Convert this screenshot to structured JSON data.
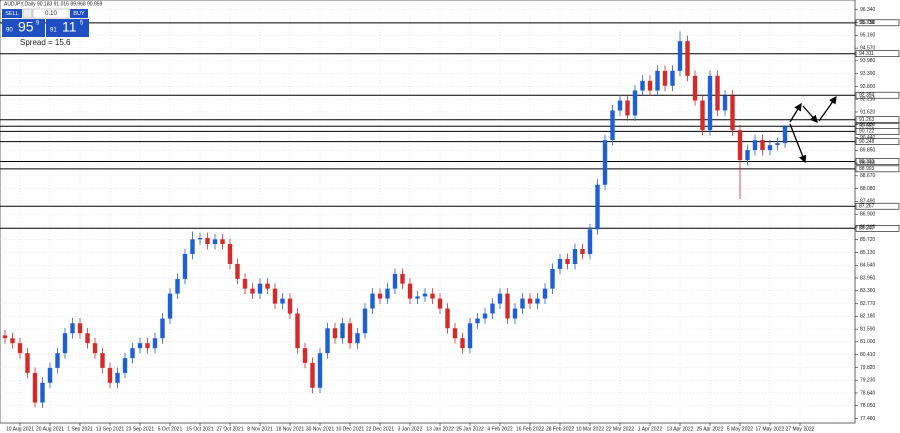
{
  "chart_data": {
    "type": "candlestick",
    "title": "AUDJPY,Daily  90.183 91.016 89.968 90.959",
    "up_color": "#1f5fd6",
    "down_color": "#d42a2a",
    "grid": true,
    "ylim": [
      77.3,
      96.7
    ],
    "yticks": [
      {
        "value": 77.46,
        "label": "77.460"
      },
      {
        "value": 78.05,
        "label": "78.050"
      },
      {
        "value": 78.64,
        "label": "78.640"
      },
      {
        "value": 79.23,
        "label": "79.230"
      },
      {
        "value": 79.82,
        "label": "79.820"
      },
      {
        "value": 80.41,
        "label": "80.410"
      },
      {
        "value": 81,
        "label": "81.000"
      },
      {
        "value": 81.59,
        "label": "81.590"
      },
      {
        "value": 82.18,
        "label": "82.180"
      },
      {
        "value": 82.77,
        "label": "82.770"
      },
      {
        "value": 83.36,
        "label": "83.360"
      },
      {
        "value": 83.95,
        "label": "83.950"
      },
      {
        "value": 84.54,
        "label": "84.540"
      },
      {
        "value": 85.13,
        "label": "85.130"
      },
      {
        "value": 85.72,
        "label": "85.720"
      },
      {
        "value": 86.31,
        "label": "86.310"
      },
      {
        "value": 86.9,
        "label": "86.900"
      },
      {
        "value": 87.49,
        "label": "87.490"
      },
      {
        "value": 88.08,
        "label": "88.080"
      },
      {
        "value": 88.67,
        "label": "88.670"
      },
      {
        "value": 89.26,
        "label": "89.260"
      },
      {
        "value": 89.85,
        "label": "89.850"
      },
      {
        "value": 90.44,
        "label": "90.440"
      },
      {
        "value": 91.03,
        "label": "91.030"
      },
      {
        "value": 91.62,
        "label": "91.620"
      },
      {
        "value": 92.21,
        "label": "92.210"
      },
      {
        "value": 92.8,
        "label": "92.800"
      },
      {
        "value": 93.39,
        "label": "93.390"
      },
      {
        "value": 93.98,
        "label": "93.980"
      },
      {
        "value": 94.57,
        "label": "94.570"
      },
      {
        "value": 95.16,
        "label": "95.160"
      },
      {
        "value": 95.75,
        "label": "95.750"
      },
      {
        "value": 96.34,
        "label": "96.340"
      }
    ],
    "levels": [
      95.738,
      94.311,
      92.394,
      91.263,
      90.961,
      90.722,
      90.248,
      89.333,
      88.993,
      87.267,
      86.247
    ],
    "categories": [
      null,
      null,
      "10 Aug 2021",
      null,
      null,
      null,
      "20 Aug 2021",
      null,
      null,
      null,
      "1 Sep 2021",
      null,
      null,
      null,
      "13 Sep 2021",
      null,
      null,
      null,
      "23 Sep 2021",
      null,
      null,
      null,
      "5 Oct 2021",
      null,
      null,
      null,
      "15 Oct 2021",
      null,
      null,
      null,
      "27 Oct 2021",
      null,
      null,
      null,
      "8 Nov 2021",
      null,
      null,
      null,
      "18 Nov 2021",
      null,
      null,
      null,
      "30 Nov 2021",
      null,
      null,
      null,
      "10 Dec 2021",
      null,
      null,
      null,
      "22 Dec 2021",
      null,
      null,
      null,
      "3 Jan 2022",
      null,
      null,
      null,
      "13 Jan 2022",
      null,
      null,
      null,
      "25 Jan 2022",
      null,
      null,
      null,
      "4 Feb 2022",
      null,
      null,
      null,
      "16 Feb 2022",
      null,
      null,
      null,
      "28 Feb 2022",
      null,
      null,
      null,
      "10 Mar 2022",
      null,
      null,
      null,
      "22 Mar 2022",
      null,
      null,
      null,
      "1 Apr 2022",
      null,
      null,
      null,
      "13 Apr 2022",
      null,
      null,
      null,
      "25 Apr 2022",
      null,
      null,
      null,
      "5 May 2022",
      null,
      null,
      null,
      "17 May 2022",
      null,
      null,
      null,
      "27 May 2022"
    ],
    "ohlc": [
      [
        81.3,
        81.55,
        80.92,
        81.17
      ],
      [
        81.17,
        81.42,
        80.69,
        80.94
      ],
      [
        80.94,
        81.19,
        80.23,
        80.48
      ],
      [
        80.48,
        80.73,
        79.32,
        79.57
      ],
      [
        79.57,
        79.82,
        77.97,
        78.2
      ],
      [
        78.2,
        79.36,
        77.95,
        79.11
      ],
      [
        79.11,
        80.05,
        78.86,
        79.8
      ],
      [
        79.8,
        80.73,
        79.55,
        80.48
      ],
      [
        80.48,
        81.65,
        80.23,
        81.4
      ],
      [
        81.4,
        82.11,
        81.15,
        81.86
      ],
      [
        81.86,
        82.11,
        81.15,
        81.4
      ],
      [
        81.4,
        81.65,
        80.69,
        80.94
      ],
      [
        80.94,
        81.19,
        80.23,
        80.48
      ],
      [
        80.48,
        80.73,
        79.55,
        79.8
      ],
      [
        79.8,
        80.05,
        78.86,
        79.11
      ],
      [
        79.11,
        79.82,
        78.86,
        79.57
      ],
      [
        79.57,
        80.5,
        79.32,
        80.25
      ],
      [
        80.25,
        80.96,
        80,
        80.71
      ],
      [
        80.71,
        81.19,
        80.46,
        80.94
      ],
      [
        80.94,
        81.19,
        80.46,
        80.71
      ],
      [
        80.71,
        81.42,
        80.46,
        81.17
      ],
      [
        81.17,
        82.33,
        80.92,
        82.08
      ],
      [
        82.08,
        83.48,
        81.83,
        83.23
      ],
      [
        83.23,
        84.16,
        82.98,
        83.91
      ],
      [
        83.91,
        85.31,
        83.66,
        85.06
      ],
      [
        85.06,
        86.1,
        84.81,
        85.74
      ],
      [
        85.74,
        86.05,
        85.49,
        85.8
      ],
      [
        85.8,
        86.05,
        85.27,
        85.52
      ],
      [
        85.52,
        85.99,
        85.27,
        85.74
      ],
      [
        85.74,
        85.99,
        85.27,
        85.52
      ],
      [
        85.52,
        85.77,
        84.35,
        84.6
      ],
      [
        84.6,
        84.85,
        83.66,
        83.91
      ],
      [
        83.91,
        84.16,
        83.21,
        83.46
      ],
      [
        83.46,
        83.71,
        82.98,
        83.23
      ],
      [
        83.23,
        83.94,
        82.98,
        83.69
      ],
      [
        83.69,
        83.94,
        83.21,
        83.46
      ],
      [
        83.46,
        83.71,
        82.52,
        82.77
      ],
      [
        82.77,
        83.25,
        82.52,
        83
      ],
      [
        83,
        83.25,
        82.06,
        82.31
      ],
      [
        82.31,
        82.56,
        80.46,
        80.71
      ],
      [
        80.71,
        80.96,
        79.78,
        80.03
      ],
      [
        80.03,
        80.28,
        78.63,
        78.88
      ],
      [
        78.88,
        80.73,
        78.63,
        80.48
      ],
      [
        80.48,
        81.88,
        80.23,
        81.63
      ],
      [
        81.63,
        81.88,
        80.92,
        81.17
      ],
      [
        81.17,
        82.11,
        80.92,
        81.86
      ],
      [
        81.86,
        82.11,
        80.69,
        80.94
      ],
      [
        80.94,
        81.65,
        80.69,
        81.4
      ],
      [
        81.4,
        82.79,
        81.15,
        82.54
      ],
      [
        82.54,
        83.48,
        82.29,
        83.23
      ],
      [
        83.23,
        83.48,
        82.75,
        83
      ],
      [
        83,
        83.71,
        82.75,
        83.46
      ],
      [
        83.46,
        84.39,
        83.21,
        84.14
      ],
      [
        84.14,
        84.39,
        83.44,
        83.69
      ],
      [
        83.69,
        83.94,
        82.75,
        83
      ],
      [
        83,
        83.35,
        82.75,
        83.1
      ],
      [
        83.1,
        83.48,
        82.85,
        83.23
      ],
      [
        83.23,
        83.48,
        82.75,
        83
      ],
      [
        83,
        83.25,
        82.29,
        82.54
      ],
      [
        82.54,
        82.79,
        81.38,
        81.63
      ],
      [
        81.63,
        81.88,
        80.92,
        81.17
      ],
      [
        81.17,
        81.42,
        80.46,
        80.71
      ],
      [
        80.71,
        82.11,
        80.46,
        81.86
      ],
      [
        81.86,
        82.33,
        81.61,
        82.08
      ],
      [
        82.08,
        82.56,
        81.83,
        82.31
      ],
      [
        82.31,
        83.02,
        82.06,
        82.77
      ],
      [
        82.77,
        83.48,
        82.52,
        83.23
      ],
      [
        83.23,
        83.48,
        81.83,
        82.08
      ],
      [
        82.08,
        82.79,
        81.83,
        82.54
      ],
      [
        82.54,
        83.25,
        82.29,
        83
      ],
      [
        83,
        83.25,
        82.52,
        82.77
      ],
      [
        82.77,
        83.25,
        82.52,
        83
      ],
      [
        83,
        83.71,
        82.75,
        83.46
      ],
      [
        83.46,
        84.62,
        83.21,
        84.37
      ],
      [
        84.37,
        85.08,
        84.12,
        84.83
      ],
      [
        84.83,
        85.08,
        84.35,
        84.6
      ],
      [
        84.6,
        85.54,
        84.35,
        85.29
      ],
      [
        85.29,
        85.54,
        84.81,
        85.06
      ],
      [
        85.06,
        86.45,
        84.81,
        86.2
      ],
      [
        86.2,
        88.51,
        85.95,
        88.26
      ],
      [
        88.26,
        90.57,
        88.01,
        90.32
      ],
      [
        90.32,
        91.94,
        90.07,
        91.69
      ],
      [
        91.69,
        92.4,
        91.44,
        92.15
      ],
      [
        92.15,
        92.4,
        91.21,
        91.46
      ],
      [
        91.46,
        92.86,
        91.21,
        92.61
      ],
      [
        92.61,
        93.31,
        92.36,
        93.06
      ],
      [
        93.06,
        93.31,
        92.36,
        92.61
      ],
      [
        92.61,
        93.77,
        92.36,
        93.52
      ],
      [
        93.52,
        93.77,
        92.58,
        92.83
      ],
      [
        92.83,
        93.77,
        92.58,
        93.52
      ],
      [
        93.52,
        95.35,
        93.27,
        94.89
      ],
      [
        94.89,
        95.14,
        93.04,
        93.29
      ],
      [
        93.29,
        93.54,
        91.9,
        92.15
      ],
      [
        92.15,
        92.4,
        90.53,
        90.78
      ],
      [
        90.78,
        93.54,
        90.53,
        93.29
      ],
      [
        93.29,
        93.54,
        91.44,
        91.69
      ],
      [
        91.69,
        92.63,
        91.44,
        92.38
      ],
      [
        92.38,
        92.63,
        90.53,
        90.78
      ],
      [
        90.78,
        91.03,
        87.6,
        89.4
      ],
      [
        89.4,
        90.11,
        89.15,
        89.86
      ],
      [
        89.86,
        90.57,
        89.61,
        90.32
      ],
      [
        90.32,
        90.57,
        89.61,
        89.86
      ],
      [
        89.86,
        90.34,
        89.61,
        90.09
      ],
      [
        90.09,
        90.43,
        89.84,
        90.18
      ],
      [
        90.183,
        91.016,
        89.968,
        90.959
      ],
      null,
      null
    ]
  },
  "trade_panel": {
    "sell": "SELL",
    "lot": "0.10",
    "buy": "BUY",
    "sell_price": {
      "prefix": "90",
      "big": "95",
      "sup": "9"
    },
    "buy_price": {
      "prefix": "91",
      "big": "11",
      "sup": "5"
    },
    "spread": "Spread = 15.6"
  }
}
